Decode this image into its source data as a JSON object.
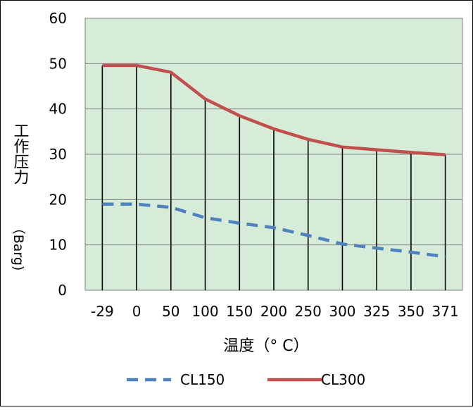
{
  "chart_data": {
    "type": "line",
    "categories": [
      "-29",
      "0",
      "50",
      "100",
      "150",
      "200",
      "250",
      "300",
      "325",
      "350",
      "371"
    ],
    "series": [
      {
        "name": "CL150",
        "values": [
          19.0,
          19.0,
          18.3,
          16.0,
          14.8,
          13.8,
          12.1,
          10.2,
          9.3,
          8.4,
          7.4
        ],
        "color": "#4f81bd",
        "style": "dashed"
      },
      {
        "name": "CL300",
        "values": [
          49.6,
          49.6,
          48.1,
          42.2,
          38.5,
          35.6,
          33.3,
          31.6,
          31.0,
          30.4,
          29.9
        ],
        "color": "#c0504d",
        "style": "solid"
      }
    ],
    "xlabel": "温度（° C）",
    "ylabel_cjk": "工作压力",
    "ylabel_unit": "（Barg)",
    "ylim": [
      0,
      60
    ],
    "yticks": [
      "0",
      "10",
      "20",
      "30",
      "40",
      "50",
      "60"
    ],
    "drop_lines": true,
    "plot_background": "#d6ecd9",
    "grid": true,
    "legend_position": "bottom"
  }
}
